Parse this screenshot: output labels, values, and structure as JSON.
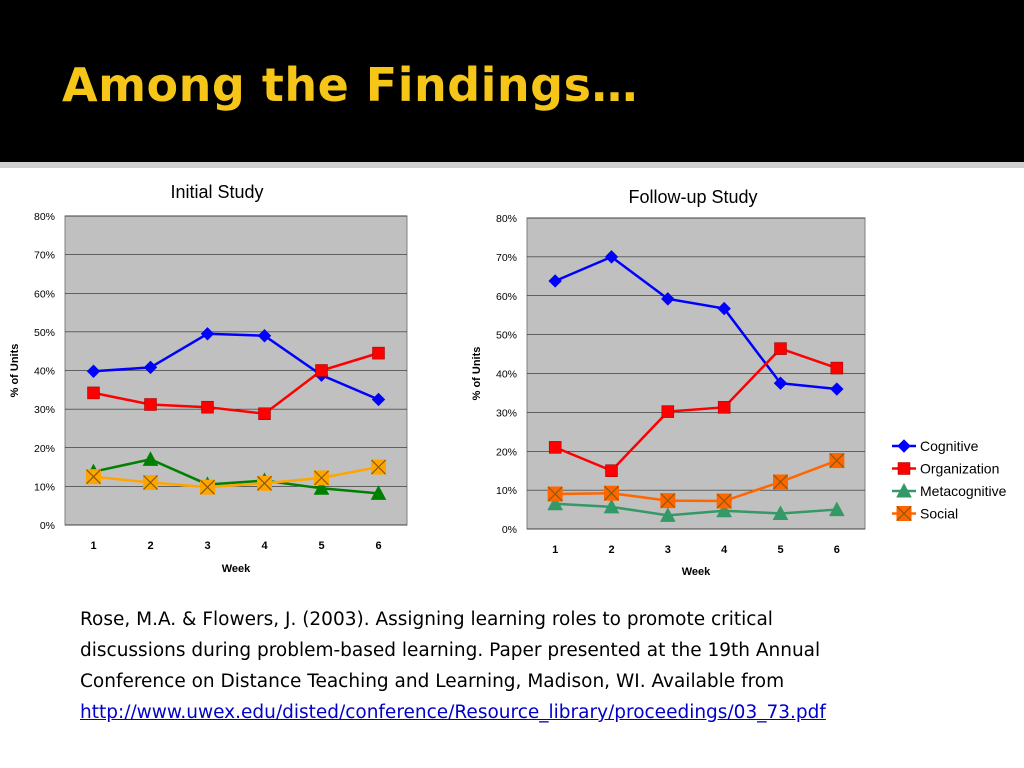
{
  "slide": {
    "title": "Among the Findings…"
  },
  "citation": {
    "lines": [
      "Rose, M.A. & Flowers, J. (2003). Assigning learning roles to promote critical",
      "discussions during problem-based learning. Paper presented at the 19th Annual",
      "Conference on Distance Teaching and Learning, Madison, WI. Available from"
    ],
    "link": "http://www.uwex.edu/disted/conference/Resource_library/proceedings/03_73.pdf"
  },
  "colors": {
    "title": "#F5C518",
    "plot_bg": "#C0C0C0",
    "link": "#0000CC"
  },
  "chart_data": [
    {
      "type": "line",
      "title": "Initial Study",
      "xlabel": "Week",
      "ylabel": "% of Units",
      "categories": [
        "1",
        "2",
        "3",
        "4",
        "5",
        "6"
      ],
      "ylim": [
        0,
        80
      ],
      "yticks": [
        "0%",
        "10%",
        "20%",
        "30%",
        "40%",
        "50%",
        "60%",
        "70%",
        "80%"
      ],
      "grid": true,
      "legend": "none",
      "series": [
        {
          "name": "Cognitive",
          "values": [
            39.8,
            40.8,
            49.5,
            49.0,
            38.8,
            32.5
          ],
          "color": "#0000FF",
          "marker": "diamond"
        },
        {
          "name": "Organization",
          "values": [
            34.2,
            31.2,
            30.5,
            28.8,
            40.0,
            44.5
          ],
          "color": "#FF0000",
          "marker": "square"
        },
        {
          "name": "Metacognitive",
          "values": [
            13.8,
            17.0,
            10.5,
            11.5,
            9.5,
            8.2
          ],
          "color": "#008000",
          "marker": "triangle"
        },
        {
          "name": "Social",
          "values": [
            12.5,
            11.0,
            9.8,
            10.8,
            12.2,
            15.0
          ],
          "color": "#FFA500",
          "marker": "xbox"
        }
      ]
    },
    {
      "type": "line",
      "title": "Follow-up Study",
      "xlabel": "Week",
      "ylabel": "% of Units",
      "categories": [
        "1",
        "2",
        "3",
        "4",
        "5",
        "6"
      ],
      "ylim": [
        0,
        80
      ],
      "yticks": [
        "0%",
        "10%",
        "20%",
        "30%",
        "40%",
        "50%",
        "60%",
        "70%",
        "80%"
      ],
      "grid": true,
      "legend": "right",
      "series": [
        {
          "name": "Cognitive",
          "values": [
            63.8,
            70.0,
            59.2,
            56.7,
            37.5,
            36.0
          ],
          "color": "#0000FF",
          "marker": "diamond"
        },
        {
          "name": "Organization",
          "values": [
            21.0,
            15.0,
            30.2,
            31.3,
            46.4,
            41.4
          ],
          "color": "#FF0000",
          "marker": "square"
        },
        {
          "name": "Metacognitive",
          "values": [
            6.5,
            5.7,
            3.5,
            4.7,
            4.0,
            5.0
          ],
          "color": "#339966",
          "marker": "triangle"
        },
        {
          "name": "Social",
          "values": [
            9.0,
            9.2,
            7.3,
            7.2,
            12.1,
            17.6
          ],
          "color": "#FF6600",
          "marker": "xbox"
        }
      ]
    }
  ]
}
